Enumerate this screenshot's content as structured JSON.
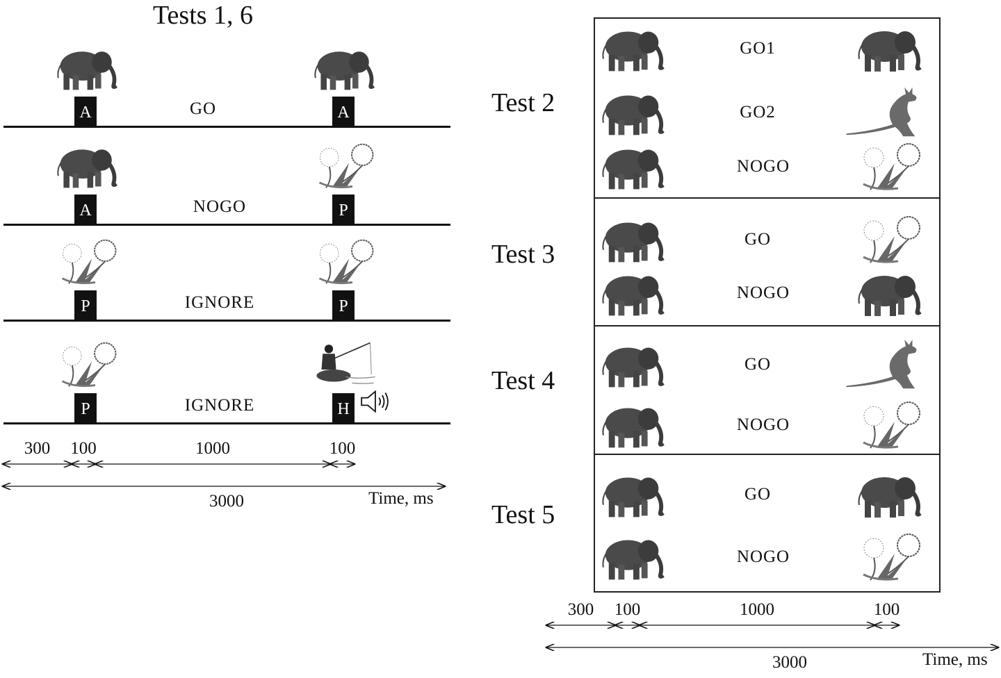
{
  "left": {
    "title": "Tests 1, 6",
    "rows": [
      {
        "left_icon": "elephant-icon",
        "left_letter": "A",
        "label": "GO",
        "right_icon": "elephant-icon",
        "right_letter": "A",
        "sound": false
      },
      {
        "left_icon": "elephant-icon",
        "left_letter": "A",
        "label": "NOGO",
        "right_icon": "dandelion-icon",
        "right_letter": "P",
        "sound": false
      },
      {
        "left_icon": "dandelion-icon",
        "left_letter": "P",
        "label": "IGNORE",
        "right_icon": "dandelion-icon",
        "right_letter": "P",
        "sound": false
      },
      {
        "left_icon": "dandelion-icon",
        "left_letter": "P",
        "label": "IGNORE",
        "right_icon": "fisherman-icon",
        "right_letter": "H",
        "sound": true
      }
    ],
    "timeline": {
      "segments": [
        "300",
        "100",
        "1000",
        "100"
      ],
      "total": "3000",
      "axis": "Time, ms"
    }
  },
  "right": {
    "tests": [
      {
        "name": "Test 2",
        "rows": [
          {
            "left_icon": "elephant-icon",
            "label": "GO1",
            "right_icon": "elephant-icon"
          },
          {
            "left_icon": "elephant-icon",
            "label": "GO2",
            "right_icon": "kangaroo-icon"
          },
          {
            "left_icon": "elephant-icon",
            "label": "NOGO",
            "right_icon": "dandelion-icon"
          }
        ]
      },
      {
        "name": "Test 3",
        "rows": [
          {
            "left_icon": "elephant-icon",
            "label": "GO",
            "right_icon": "dandelion-icon"
          },
          {
            "left_icon": "elephant-icon",
            "label": "NOGO",
            "right_icon": "elephant-icon"
          }
        ]
      },
      {
        "name": "Test 4",
        "rows": [
          {
            "left_icon": "elephant-icon",
            "label": "GO",
            "right_icon": "kangaroo-icon"
          },
          {
            "left_icon": "elephant-icon",
            "label": "NOGO",
            "right_icon": "dandelion-icon"
          }
        ]
      },
      {
        "name": "Test 5",
        "rows": [
          {
            "left_icon": "elephant-icon",
            "label": "GO",
            "right_icon": "elephant-icon"
          },
          {
            "left_icon": "elephant-icon",
            "label": "NOGO",
            "right_icon": "dandelion-icon"
          }
        ]
      }
    ],
    "timeline": {
      "segments": [
        "300",
        "100",
        "1000",
        "100"
      ],
      "total": "3000",
      "axis": "Time, ms"
    }
  }
}
